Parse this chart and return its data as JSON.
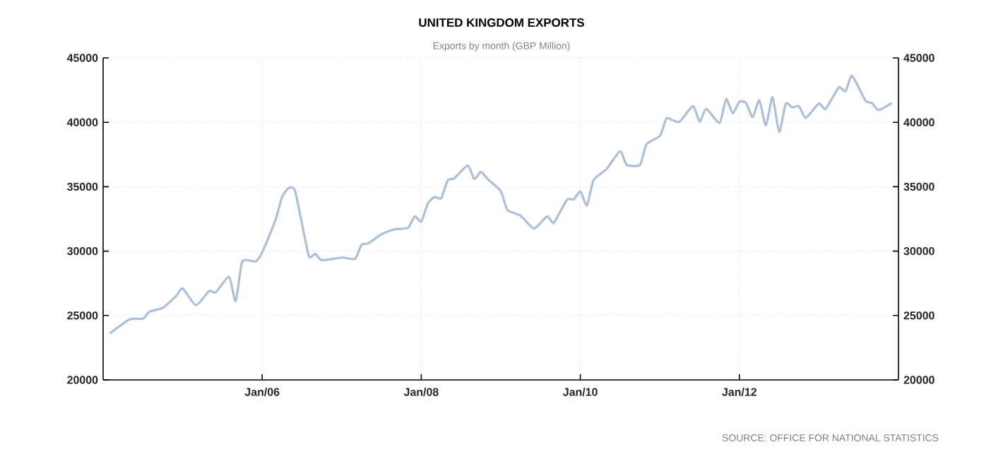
{
  "chart_data": {
    "type": "line",
    "title": "UNITED KINGDOM EXPORTS",
    "subtitle": "Exports by month (GBP Million)",
    "annotations": [
      "SOURCE: OFFICE FOR NATIONAL STATISTICS"
    ],
    "x": [
      "2004-02",
      "2004-05",
      "2004-07",
      "2004-08",
      "2004-10",
      "2004-12",
      "2005-01",
      "2005-03",
      "2005-05",
      "2005-06",
      "2005-08",
      "2005-09",
      "2005-10",
      "2005-12",
      "2006-01",
      "2006-03",
      "2006-04",
      "2006-05",
      "2006-06",
      "2006-08",
      "2006-09",
      "2006-10",
      "2007-01",
      "2007-03",
      "2007-04",
      "2007-05",
      "2007-07",
      "2007-09",
      "2007-11",
      "2007-12",
      "2008-01",
      "2008-02",
      "2008-03",
      "2008-04",
      "2008-05",
      "2008-06",
      "2008-08",
      "2008-09",
      "2008-10",
      "2008-11",
      "2009-01",
      "2009-02",
      "2009-04",
      "2009-06",
      "2009-08",
      "2009-09",
      "2009-11",
      "2009-12",
      "2010-01",
      "2010-02",
      "2010-03",
      "2010-05",
      "2010-07",
      "2010-08",
      "2010-10",
      "2010-11",
      "2011-01",
      "2011-02",
      "2011-03",
      "2011-04",
      "2011-06",
      "2011-07",
      "2011-08",
      "2011-10",
      "2011-11",
      "2011-12",
      "2012-01",
      "2012-02",
      "2012-03",
      "2012-04",
      "2012-05",
      "2012-06",
      "2012-07",
      "2012-08",
      "2012-09",
      "2012-10",
      "2012-11",
      "2013-01",
      "2013-02",
      "2013-04",
      "2013-05",
      "2013-06",
      "2013-08",
      "2013-09",
      "2013-10",
      "2013-12"
    ],
    "series": [
      {
        "color": "#a9bfdc",
        "values": [
          23600,
          24700,
          24750,
          25300,
          25600,
          26500,
          27100,
          25800,
          26900,
          26800,
          28000,
          26100,
          29200,
          29200,
          29900,
          32400,
          34200,
          34900,
          34600,
          29700,
          29800,
          29300,
          29500,
          29400,
          30500,
          30600,
          31300,
          31700,
          31800,
          32700,
          32300,
          33700,
          34200,
          34100,
          35500,
          35650,
          36650,
          35600,
          36150,
          35600,
          34650,
          33200,
          32750,
          31750,
          32700,
          32200,
          34000,
          34000,
          34650,
          33550,
          35500,
          36400,
          37750,
          36700,
          36700,
          38300,
          38950,
          40300,
          40150,
          40050,
          41250,
          40050,
          41050,
          39950,
          41800,
          40700,
          41600,
          41500,
          40400,
          41700,
          39750,
          41950,
          39250,
          41450,
          41150,
          41250,
          40350,
          41450,
          41050,
          42700,
          42400,
          43600,
          41700,
          41500,
          40950,
          41500
        ]
      }
    ],
    "xlim": [
      "2004-01",
      "2014-01"
    ],
    "xticks": [
      {
        "value": "2006-01",
        "label": "Jan/06"
      },
      {
        "value": "2008-01",
        "label": "Jan/08"
      },
      {
        "value": "2010-01",
        "label": "Jan/10"
      },
      {
        "value": "2012-01",
        "label": "Jan/12"
      }
    ],
    "ylim": [
      20000,
      45000
    ],
    "yticks": [
      20000,
      25000,
      30000,
      35000,
      40000,
      45000
    ],
    "y2lim": [
      20000,
      45000
    ],
    "y2ticks": [
      20000,
      25000,
      30000,
      35000,
      40000,
      45000
    ],
    "grid": true,
    "line_style": "solid",
    "marker": "none"
  }
}
